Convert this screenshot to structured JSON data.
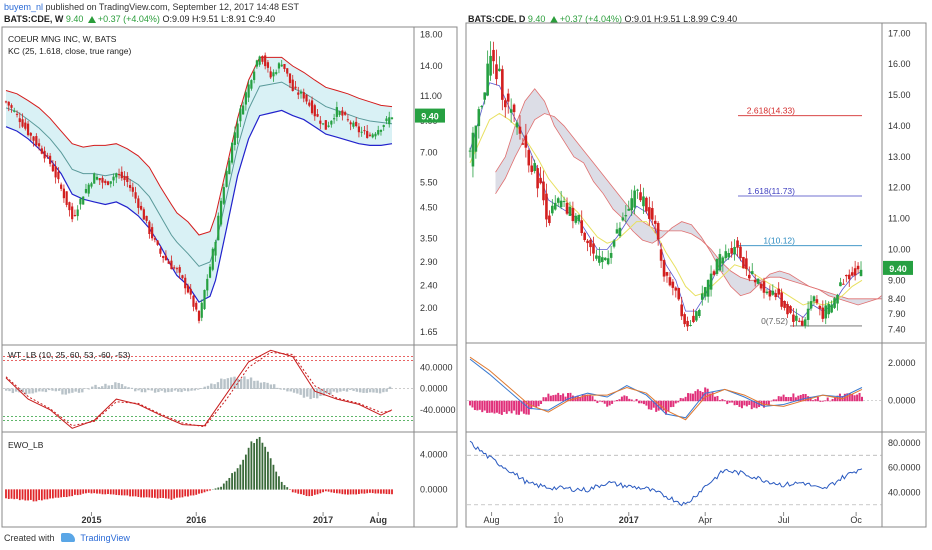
{
  "header": {
    "user": "buyem_nl",
    "published": "published on TradingView.com, September 12, 2017 14:48 EST",
    "left": {
      "symbol": "BATS:CDE, W",
      "price": "9.40",
      "change": "+0.37 (+4.04%)",
      "o": "O:9.09",
      "h": "H:9.51",
      "l": "L:8.91",
      "c": "C:9.40"
    },
    "right": {
      "symbol": "BATS:CDE, D",
      "price": "9.40",
      "change": "+0.37 (+4.04%)",
      "o": "O:9.01",
      "h": "H:9.51",
      "l": "L:8.99",
      "c": "C:9.40"
    }
  },
  "footer": {
    "created": "Created with",
    "brand": "TradingView"
  },
  "colors": {
    "candle_up": "#26a041",
    "candle_down": "#d21f1f",
    "kc_upper": "#d41c1c",
    "kc_lower": "#2222cc",
    "kc_mid": "#5a9a9a",
    "kc_fill": "#d9f1f5",
    "price_tag": "#26a041",
    "fib": "#d42b2b"
  },
  "chart_data": [
    {
      "type": "line",
      "panel": "left-price",
      "title": "COEUR MNG INC, W, BATS",
      "indicator": "KC (25, 1.618, close, true range)",
      "scale": "log",
      "yticks": [
        "18.00",
        "14.00",
        "11.00",
        "9.00",
        "7.00",
        "5.50",
        "4.50",
        "3.50",
        "2.90",
        "2.40",
        "2.00",
        "1.65"
      ],
      "ylim": [
        1.5,
        19
      ],
      "xticks": [
        "2015",
        "2016",
        "2017",
        "Aug"
      ],
      "last_price": "9.40",
      "x": [
        0,
        4,
        8,
        12,
        16,
        20,
        24,
        28,
        32,
        36,
        40,
        44,
        48,
        52,
        56,
        60,
        62,
        66,
        70,
        74,
        76,
        80,
        84,
        88,
        92,
        96,
        100,
        104,
        108,
        112,
        116,
        120,
        124,
        128,
        132,
        136,
        140
      ],
      "series": [
        {
          "name": "price",
          "values": [
            10.5,
            9.4,
            8.2,
            7.3,
            6.4,
            5.2,
            4.1,
            5.0,
            5.8,
            5.4,
            5.9,
            5.5,
            4.6,
            3.7,
            3.1,
            2.8,
            2.7,
            2.3,
            1.8,
            2.8,
            3.5,
            6.0,
            9.0,
            12.0,
            15.5,
            12.8,
            14.5,
            11.5,
            11.0,
            9.5,
            8.5,
            9.8,
            9.0,
            8.3,
            8.0,
            8.6,
            9.4
          ]
        },
        {
          "name": "upper",
          "values": [
            11.5,
            11.2,
            10.6,
            10.0,
            9.2,
            8.3,
            7.5,
            7.3,
            7.4,
            7.4,
            7.5,
            7.2,
            6.8,
            6.2,
            5.3,
            4.6,
            4.3,
            4.0,
            3.6,
            3.7,
            4.2,
            6.2,
            9.2,
            12.5,
            15.0,
            15.0,
            15.0,
            14.0,
            13.3,
            12.5,
            11.8,
            11.5,
            11.2,
            10.8,
            10.5,
            10.2,
            10.1
          ]
        },
        {
          "name": "middle",
          "values": [
            10.0,
            9.7,
            9.1,
            8.5,
            7.8,
            7.0,
            6.1,
            5.9,
            5.9,
            5.8,
            5.9,
            5.7,
            5.4,
            4.9,
            4.2,
            3.6,
            3.4,
            3.1,
            2.8,
            2.9,
            3.3,
            4.9,
            7.3,
            9.9,
            11.9,
            12.1,
            12.3,
            11.7,
            11.3,
            10.7,
            10.1,
            9.8,
            9.5,
            9.2,
            9.0,
            8.9,
            8.8
          ]
        },
        {
          "name": "lower",
          "values": [
            8.6,
            8.3,
            7.8,
            7.2,
            6.6,
            5.9,
            5.0,
            4.8,
            4.7,
            4.6,
            4.7,
            4.5,
            4.2,
            3.8,
            3.3,
            2.8,
            2.6,
            2.4,
            2.1,
            2.2,
            2.5,
            3.8,
            5.8,
            7.8,
            9.4,
            9.6,
            9.8,
            9.4,
            9.1,
            8.6,
            8.1,
            7.9,
            7.7,
            7.5,
            7.4,
            7.4,
            7.5
          ]
        }
      ]
    },
    {
      "type": "line",
      "panel": "left-wt",
      "title": "WT_LB (10, 25, 60, 53, -60, -53)",
      "yticks": [
        "40.0000",
        "0.0000",
        "-40.0000"
      ],
      "ylim": [
        -80,
        80
      ],
      "levels": [
        60,
        53,
        -53,
        -60
      ],
      "x": [
        0,
        8,
        16,
        24,
        32,
        40,
        48,
        56,
        64,
        72,
        80,
        88,
        96,
        104,
        112,
        120,
        128,
        136,
        140
      ],
      "series": [
        {
          "name": "wt1",
          "values": [
            20,
            -20,
            -40,
            -75,
            -60,
            -20,
            -30,
            -50,
            -68,
            -70,
            -10,
            50,
            72,
            60,
            -5,
            -20,
            -30,
            -50,
            -40
          ]
        },
        {
          "name": "wt2",
          "values": [
            22,
            -15,
            -38,
            -70,
            -62,
            -25,
            -28,
            -48,
            -65,
            -72,
            -20,
            40,
            68,
            64,
            5,
            -18,
            -28,
            -45,
            -42
          ]
        }
      ]
    },
    {
      "type": "bar",
      "panel": "left-ewo",
      "title": "EWO_LB",
      "yticks": [
        "4.0000",
        "0.0000"
      ],
      "ylim": [
        -2.5,
        6.5
      ],
      "x": [
        0,
        10,
        20,
        30,
        40,
        50,
        60,
        70,
        78,
        84,
        88,
        90,
        92,
        94,
        96,
        100,
        104,
        110,
        116,
        124,
        132,
        140
      ],
      "values": [
        -1.0,
        -1.3,
        -0.9,
        -0.4,
        -0.6,
        -0.9,
        -1.1,
        -0.5,
        0.3,
        2.5,
        4.5,
        5.8,
        6.0,
        5.2,
        3.5,
        0.8,
        -0.3,
        -0.8,
        -0.2,
        -0.6,
        -0.4,
        -0.5
      ]
    },
    {
      "type": "line",
      "panel": "right-price",
      "symbol": "BATS:CDE, D",
      "yticks": [
        "17.00",
        "16.00",
        "15.00",
        "14.00",
        "13.00",
        "12.00",
        "11.00",
        "10.00",
        "9.00",
        "8.40",
        "7.90",
        "7.40"
      ],
      "ylim": [
        7.0,
        17.3
      ],
      "xticks": [
        "Aug",
        "10",
        "2017",
        "Apr",
        "Jul",
        "Oc"
      ],
      "last_price": "9.40",
      "fib": [
        {
          "label": "2.618(14.33)",
          "value": 14.33
        },
        {
          "label": "1.618(11.73)",
          "value": 11.73
        },
        {
          "label": "1(10.12)",
          "value": 10.12
        },
        {
          "label": "0(7.52)",
          "value": 7.52
        }
      ],
      "x": [
        0,
        10,
        20,
        30,
        40,
        50,
        60,
        70,
        80,
        90,
        100,
        110,
        120,
        130,
        140,
        150,
        160,
        170,
        180,
        190,
        200,
        210,
        220,
        230,
        240,
        250,
        260,
        270,
        280,
        290,
        300,
        310,
        320,
        330,
        340,
        350,
        360,
        370,
        380,
        390,
        400
      ],
      "series": [
        {
          "name": "price",
          "values": [
            13.0,
            14.5,
            16.2,
            15.5,
            14.5,
            13.8,
            13.0,
            12.2,
            11.0,
            11.5,
            11.2,
            11.0,
            10.3,
            9.5,
            9.8,
            10.5,
            11.2,
            11.8,
            11.5,
            10.5,
            9.0,
            8.8,
            7.5,
            7.9,
            8.6,
            9.5,
            9.8,
            10.2,
            9.5,
            9.0,
            8.7,
            8.6,
            8.2,
            7.8,
            7.6,
            8.5,
            7.9,
            8.2,
            9.0,
            9.3,
            9.4
          ]
        },
        {
          "name": "tenkan",
          "values": [
            13.2,
            14.3,
            15.4,
            15.3,
            14.6,
            14.0,
            13.3,
            12.5,
            11.6,
            11.4,
            11.2,
            11.0,
            10.5,
            10.0,
            10.0,
            10.4,
            10.9,
            11.4,
            11.2,
            10.6,
            9.5,
            9.0,
            8.0,
            8.0,
            8.5,
            9.2,
            9.6,
            9.9,
            9.5,
            9.1,
            8.8,
            8.6,
            8.3,
            8.0,
            7.8,
            8.2,
            8.0,
            8.2,
            8.7,
            9.1,
            9.3
          ]
        },
        {
          "name": "kijun",
          "values": [
            12.8,
            13.5,
            14.2,
            14.4,
            14.2,
            13.9,
            13.4,
            12.9,
            12.3,
            11.9,
            11.5,
            11.2,
            10.8,
            10.4,
            10.2,
            10.3,
            10.6,
            10.9,
            10.9,
            10.5,
            9.9,
            9.4,
            8.8,
            8.5,
            8.6,
            8.9,
            9.2,
            9.5,
            9.4,
            9.2,
            9.0,
            8.8,
            8.6,
            8.4,
            8.2,
            8.3,
            8.2,
            8.3,
            8.5,
            8.8,
            9.0
          ]
        },
        {
          "name": "span_a",
          "values": [
            12.5,
            13.0,
            14.0,
            14.8,
            15.2,
            14.8,
            14.0,
            13.5,
            13.0,
            12.8,
            12.2,
            11.8,
            11.3,
            11.0,
            10.6,
            10.3,
            10.2,
            10.4,
            10.7,
            10.9,
            10.8,
            10.4,
            9.9,
            9.3,
            8.8,
            8.5,
            8.6,
            8.9,
            9.2,
            9.3,
            9.2,
            9.0,
            8.8,
            8.7,
            8.5,
            8.4,
            8.3,
            8.2,
            8.3,
            8.4,
            8.5
          ]
        },
        {
          "name": "span_b",
          "values": [
            11.8,
            12.3,
            13.0,
            13.6,
            14.2,
            14.4,
            14.3,
            14.0,
            13.6,
            13.2,
            12.8,
            12.4,
            12.0,
            11.6,
            11.2,
            10.9,
            10.7,
            10.6,
            10.6,
            10.6,
            10.5,
            10.3,
            10.0,
            9.6,
            9.3,
            9.1,
            9.0,
            9.0,
            9.1,
            9.1,
            9.0,
            8.9,
            8.8,
            8.7,
            8.6,
            8.5,
            8.4,
            8.4,
            8.4,
            8.4,
            8.4
          ]
        }
      ]
    },
    {
      "type": "line",
      "panel": "right-wt",
      "yticks": [
        "2.0000",
        "0.0000"
      ],
      "ylim": [
        -1.6,
        3.0
      ],
      "x": [
        0,
        20,
        40,
        60,
        80,
        100,
        120,
        140,
        160,
        180,
        200,
        220,
        240,
        260,
        280,
        300,
        320,
        340,
        360,
        380,
        400
      ],
      "series": [
        {
          "name": "wt1",
          "values": [
            2.2,
            1.4,
            0.5,
            -0.4,
            -0.5,
            0.1,
            0.4,
            0.2,
            0.8,
            0.3,
            -0.7,
            -0.9,
            0.4,
            0.6,
            0.2,
            -0.3,
            -0.2,
            0.1,
            0.3,
            0.2,
            0.7
          ]
        },
        {
          "name": "wt2",
          "values": [
            2.3,
            1.6,
            0.7,
            -0.2,
            -0.6,
            0.0,
            0.3,
            0.3,
            0.7,
            0.4,
            -0.5,
            -1.0,
            0.2,
            0.6,
            0.3,
            -0.2,
            -0.3,
            0.0,
            0.3,
            0.1,
            0.6
          ]
        }
      ]
    },
    {
      "type": "line",
      "panel": "right-osc",
      "yticks": [
        "80.0000",
        "60.0000",
        "40.0000"
      ],
      "ylim": [
        25,
        88
      ],
      "levels": [
        70,
        30
      ],
      "x": [
        0,
        20,
        40,
        60,
        80,
        100,
        120,
        140,
        160,
        180,
        200,
        220,
        240,
        260,
        280,
        300,
        320,
        340,
        360,
        380,
        400
      ],
      "series": [
        {
          "name": "osc",
          "values": [
            80,
            68,
            58,
            47,
            44,
            43,
            42,
            48,
            45,
            43,
            37,
            30,
            45,
            58,
            55,
            50,
            46,
            48,
            42,
            52,
            60
          ]
        }
      ]
    }
  ]
}
